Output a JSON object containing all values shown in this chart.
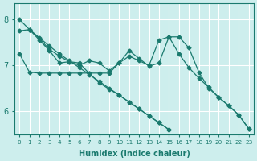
{
  "xlabel": "Humidex (Indice chaleur)",
  "bg_color": "#cdeeed",
  "grid_color": "#ffffff",
  "line_color": "#1a7a6e",
  "xlim": [
    -0.5,
    23.5
  ],
  "ylim": [
    5.5,
    8.35
  ],
  "yticks": [
    6,
    7,
    8
  ],
  "xticks": [
    0,
    1,
    2,
    3,
    4,
    5,
    6,
    7,
    8,
    9,
    10,
    11,
    12,
    13,
    14,
    15,
    16,
    17,
    18,
    19,
    20,
    21,
    22,
    23
  ],
  "series": [
    [
      0,
      8.0,
      1,
      7.78,
      2,
      7.6,
      3,
      7.42,
      4,
      7.25,
      5,
      7.1,
      6,
      6.95,
      7,
      6.8,
      8,
      6.65,
      9,
      6.5,
      10,
      6.35,
      11,
      6.2,
      12,
      6.05,
      13,
      5.9,
      14,
      5.75,
      15,
      5.6
    ],
    [
      0,
      7.75,
      1,
      7.78,
      2,
      7.58,
      3,
      7.35,
      4,
      7.2,
      5,
      7.08,
      6,
      7.0,
      7,
      7.1,
      8,
      7.05,
      9,
      6.88,
      10,
      7.05,
      11,
      7.2,
      12,
      7.1,
      13,
      7.0,
      14,
      7.55,
      15,
      7.62,
      16,
      7.25,
      17,
      6.95,
      18,
      6.72,
      19,
      6.52,
      20,
      6.3,
      21,
      6.12,
      22,
      5.92,
      23,
      5.62
    ],
    [
      0,
      7.25,
      1,
      6.85,
      2,
      6.83,
      3,
      6.83,
      4,
      6.83,
      5,
      6.83,
      6,
      6.83,
      7,
      6.83,
      8,
      6.83,
      9,
      6.83,
      10,
      7.05,
      11,
      7.32,
      12,
      7.15,
      13,
      6.98,
      14,
      7.05,
      15,
      7.62,
      16,
      7.62,
      17,
      7.38,
      18,
      6.85,
      19,
      6.5,
      20,
      6.3,
      21,
      6.12,
      22,
      5.92,
      23,
      5.62
    ],
    [
      1,
      7.78,
      2,
      7.55,
      3,
      7.32,
      4,
      7.05,
      5,
      7.08,
      6,
      7.05,
      7,
      6.82,
      8,
      6.62,
      9,
      6.48,
      10,
      6.35,
      11,
      6.2,
      12,
      6.05,
      13,
      5.9,
      14,
      5.75,
      15,
      5.6
    ]
  ]
}
